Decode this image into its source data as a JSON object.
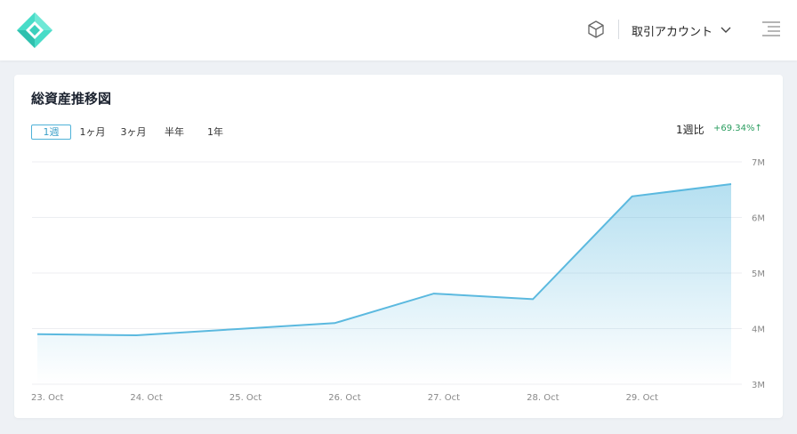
{
  "header": {
    "account_menu_label": "取引アカウント",
    "icons": [
      "logo-diamond",
      "cube-icon",
      "chevron-down-icon",
      "hamburger-menu-icon"
    ]
  },
  "card": {
    "title": "総資産推移図",
    "period_tabs": [
      {
        "label": "1週",
        "active": true
      },
      {
        "label": "1ヶ月",
        "active": false
      },
      {
        "label": "3ヶ月",
        "active": false
      },
      {
        "label": "半年",
        "active": false
      },
      {
        "label": "1年",
        "active": false
      }
    ],
    "change_label": "1週比",
    "change_value": "+69.34%↑"
  },
  "colors": {
    "accent": "#5bb9df",
    "positive": "#2a9d5f",
    "logo": "#3ed6c4"
  },
  "chart_data": {
    "type": "area",
    "x": [
      "23. Oct",
      "24. Oct",
      "25. Oct",
      "26. Oct",
      "27. Oct",
      "28. Oct",
      "29. Oct",
      ""
    ],
    "series": [
      {
        "values": [
          3.9,
          3.88,
          3.99,
          4.1,
          4.63,
          4.53,
          6.38,
          6.6
        ]
      }
    ],
    "y_ticks": [
      "3M",
      "4M",
      "5M",
      "6M",
      "7M"
    ],
    "ylim": [
      3,
      7
    ],
    "grid": true,
    "y_axis_position": "right"
  }
}
